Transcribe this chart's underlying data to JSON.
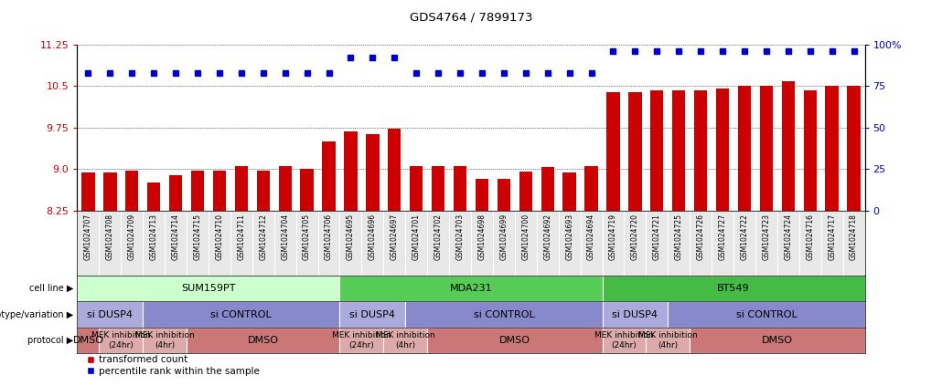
{
  "title": "GDS4764 / 7899173",
  "samples": [
    "GSM1024707",
    "GSM1024708",
    "GSM1024709",
    "GSM1024713",
    "GSM1024714",
    "GSM1024715",
    "GSM1024710",
    "GSM1024711",
    "GSM1024712",
    "GSM1024704",
    "GSM1024705",
    "GSM1024706",
    "GSM1024695",
    "GSM1024696",
    "GSM1024697",
    "GSM1024701",
    "GSM1024702",
    "GSM1024703",
    "GSM1024698",
    "GSM1024699",
    "GSM1024700",
    "GSM1024692",
    "GSM1024693",
    "GSM1024694",
    "GSM1024719",
    "GSM1024720",
    "GSM1024721",
    "GSM1024725",
    "GSM1024726",
    "GSM1024727",
    "GSM1024722",
    "GSM1024723",
    "GSM1024724",
    "GSM1024716",
    "GSM1024717",
    "GSM1024718"
  ],
  "bar_values": [
    8.93,
    8.93,
    8.97,
    8.75,
    8.88,
    8.97,
    8.97,
    9.05,
    8.97,
    9.05,
    9.0,
    9.5,
    9.68,
    9.62,
    9.72,
    9.05,
    9.05,
    9.05,
    8.82,
    8.82,
    8.95,
    9.03,
    8.93,
    9.05,
    10.38,
    10.38,
    10.42,
    10.42,
    10.42,
    10.46,
    10.5,
    10.5,
    10.58,
    10.42,
    10.5,
    10.5
  ],
  "percentile_values": [
    83,
    83,
    83,
    83,
    83,
    83,
    83,
    83,
    83,
    83,
    83,
    83,
    92,
    92,
    92,
    83,
    83,
    83,
    83,
    83,
    83,
    83,
    83,
    83,
    96,
    96,
    96,
    96,
    96,
    96,
    96,
    96,
    96,
    96,
    96,
    96
  ],
  "ylim_left": [
    8.25,
    11.25
  ],
  "ylim_right": [
    0,
    100
  ],
  "yticks_left": [
    8.25,
    9.0,
    9.75,
    10.5,
    11.25
  ],
  "yticks_right": [
    0,
    25,
    50,
    75,
    100
  ],
  "bar_color": "#cc0000",
  "dot_color": "#0000cc",
  "cell_lines": [
    {
      "label": "SUM159PT",
      "start": 0,
      "end": 11,
      "color": "#ccffcc"
    },
    {
      "label": "MDA231",
      "start": 12,
      "end": 23,
      "color": "#55cc55"
    },
    {
      "label": "BT549",
      "start": 24,
      "end": 35,
      "color": "#44bb44"
    }
  ],
  "genotypes": [
    {
      "label": "si DUSP4",
      "start": 0,
      "end": 2,
      "color": "#aaaadd"
    },
    {
      "label": "si CONTROL",
      "start": 3,
      "end": 11,
      "color": "#8888cc"
    },
    {
      "label": "si DUSP4",
      "start": 12,
      "end": 14,
      "color": "#aaaadd"
    },
    {
      "label": "si CONTROL",
      "start": 15,
      "end": 23,
      "color": "#8888cc"
    },
    {
      "label": "si DUSP4",
      "start": 24,
      "end": 26,
      "color": "#aaaadd"
    },
    {
      "label": "si CONTROL",
      "start": 27,
      "end": 35,
      "color": "#8888cc"
    }
  ],
  "protocols": [
    {
      "label": "DMSO",
      "start": 0,
      "end": 0,
      "color": "#cc7777"
    },
    {
      "label": "MEK inhibition\n(24hr)",
      "start": 1,
      "end": 2,
      "color": "#ddaaaa"
    },
    {
      "label": "MEK inhibition\n(4hr)",
      "start": 3,
      "end": 4,
      "color": "#ddaaaa"
    },
    {
      "label": "DMSO",
      "start": 5,
      "end": 11,
      "color": "#cc7777"
    },
    {
      "label": "MEK inhibition\n(24hr)",
      "start": 12,
      "end": 13,
      "color": "#ddaaaa"
    },
    {
      "label": "MEK inhibition\n(4hr)",
      "start": 14,
      "end": 15,
      "color": "#ddaaaa"
    },
    {
      "label": "DMSO",
      "start": 16,
      "end": 23,
      "color": "#cc7777"
    },
    {
      "label": "MEK inhibition\n(24hr)",
      "start": 24,
      "end": 25,
      "color": "#ddaaaa"
    },
    {
      "label": "MEK inhibition\n(4hr)",
      "start": 26,
      "end": 27,
      "color": "#ddaaaa"
    },
    {
      "label": "DMSO",
      "start": 28,
      "end": 35,
      "color": "#cc7777"
    }
  ],
  "bg_color": "#ffffff",
  "xtick_bg": "#e8e8e8"
}
